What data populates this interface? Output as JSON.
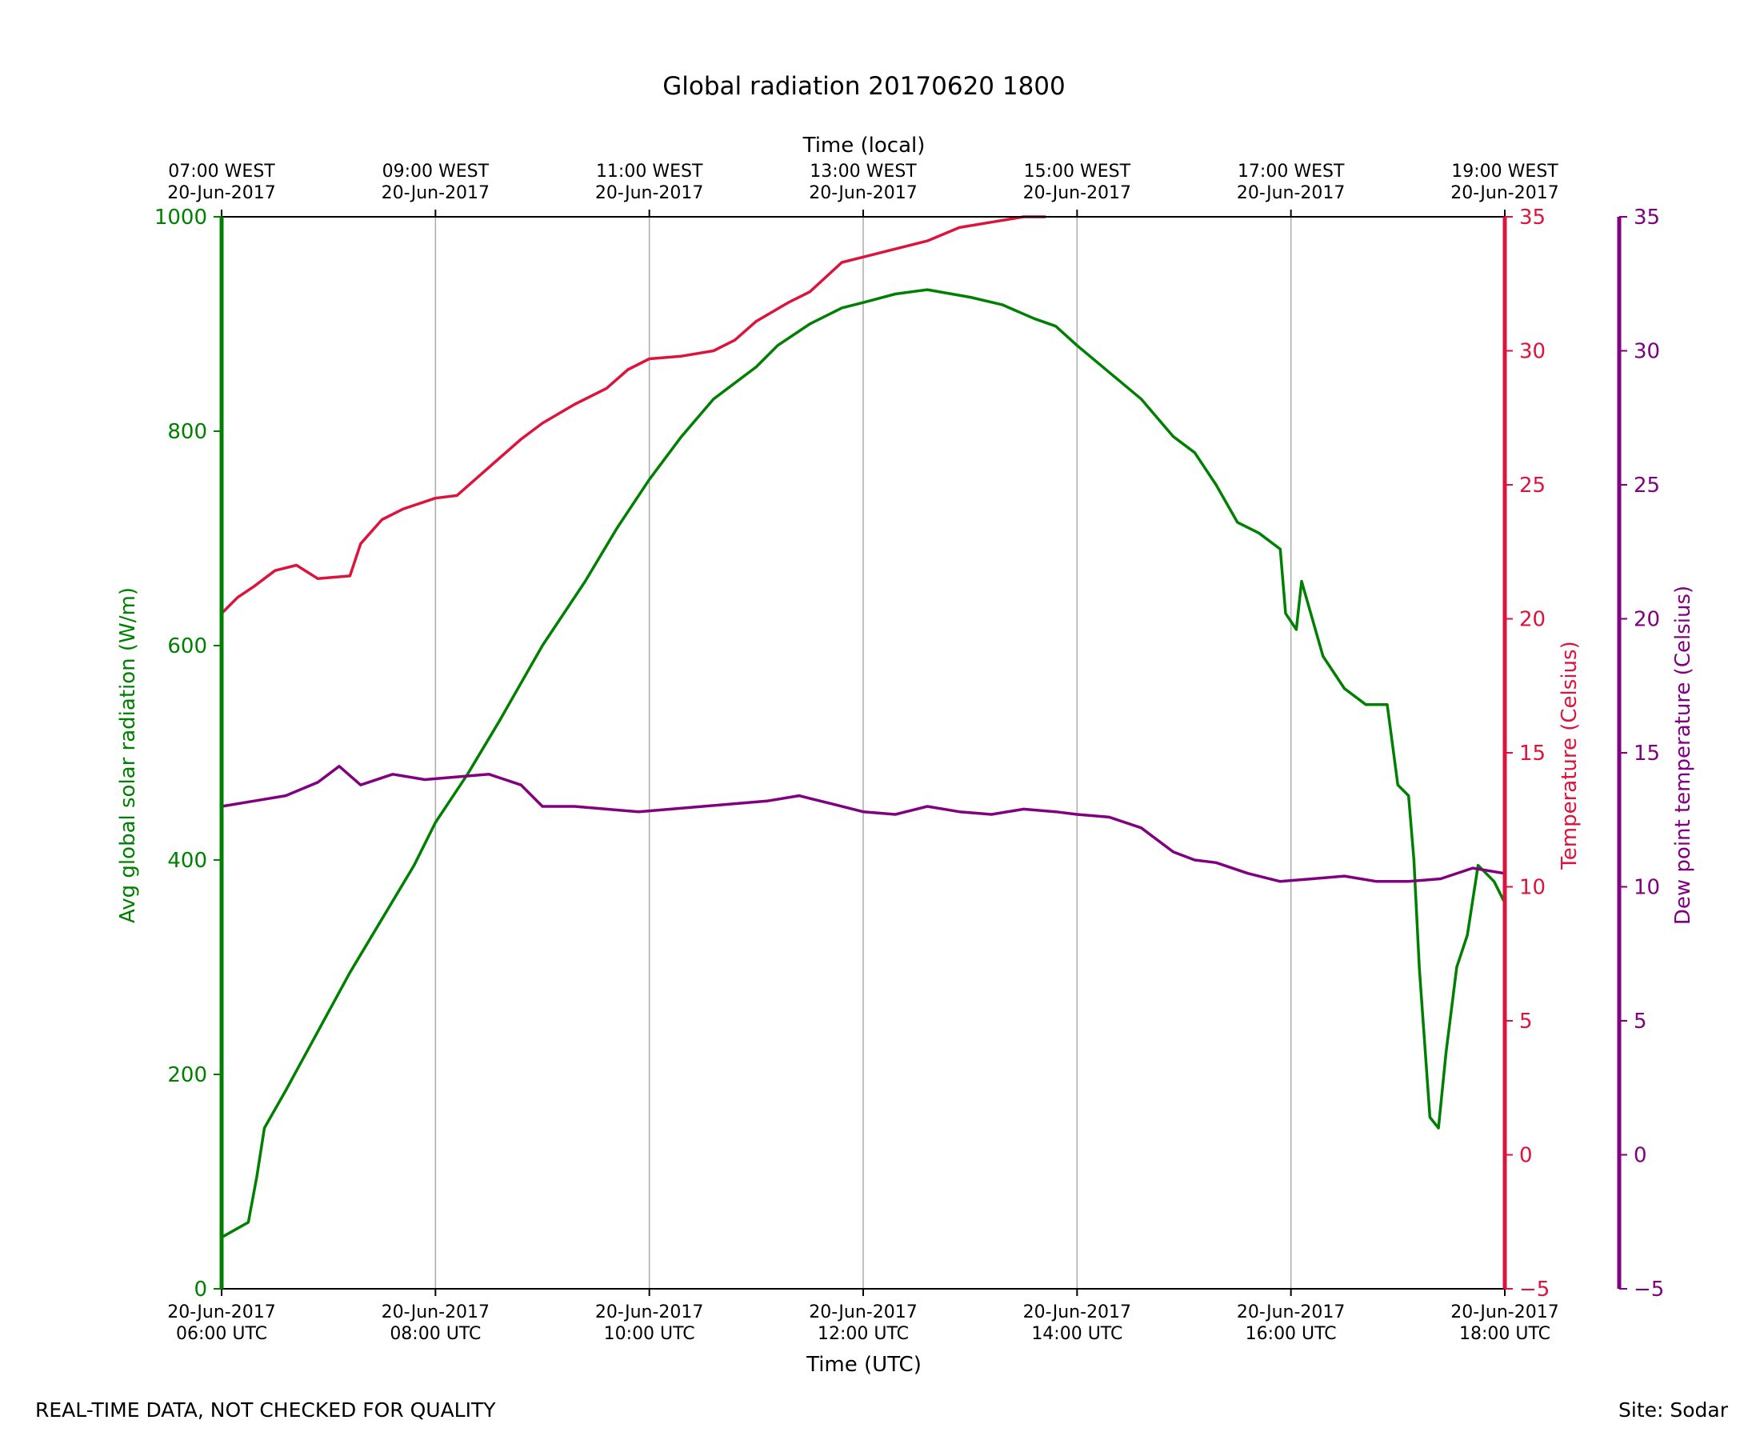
{
  "footer": {
    "disclaimer": "REAL-TIME DATA, NOT CHECKED FOR QUALITY",
    "site": "Site: Sodar"
  },
  "chart_data": {
    "type": "line",
    "title": "Global radiation 20170620 1800",
    "xlabel": "Time (UTC)",
    "xlabel_top": "Time (local)",
    "xlim": [
      0,
      12
    ],
    "x_unit": "hours since 20-Jun-2017 06:00 UTC",
    "x_ticks_bottom": [
      {
        "x": 0,
        "line1": "20-Jun-2017",
        "line2": "06:00 UTC"
      },
      {
        "x": 2,
        "line1": "20-Jun-2017",
        "line2": "08:00 UTC"
      },
      {
        "x": 4,
        "line1": "20-Jun-2017",
        "line2": "10:00 UTC"
      },
      {
        "x": 6,
        "line1": "20-Jun-2017",
        "line2": "12:00 UTC"
      },
      {
        "x": 8,
        "line1": "20-Jun-2017",
        "line2": "14:00 UTC"
      },
      {
        "x": 10,
        "line1": "20-Jun-2017",
        "line2": "16:00 UTC"
      },
      {
        "x": 12,
        "line1": "20-Jun-2017",
        "line2": "18:00 UTC"
      }
    ],
    "x_ticks_top": [
      {
        "x": 0,
        "line1": "07:00 WEST",
        "line2": "20-Jun-2017"
      },
      {
        "x": 2,
        "line1": "09:00 WEST",
        "line2": "20-Jun-2017"
      },
      {
        "x": 4,
        "line1": "11:00 WEST",
        "line2": "20-Jun-2017"
      },
      {
        "x": 6,
        "line1": "13:00 WEST",
        "line2": "20-Jun-2017"
      },
      {
        "x": 8,
        "line1": "15:00 WEST",
        "line2": "20-Jun-2017"
      },
      {
        "x": 10,
        "line1": "17:00 WEST",
        "line2": "20-Jun-2017"
      },
      {
        "x": 12,
        "line1": "19:00 WEST",
        "line2": "20-Jun-2017"
      }
    ],
    "grid": true,
    "axes": {
      "radiation": {
        "label": "Avg global solar radiation (W/m)",
        "ylim": [
          0,
          1000
        ],
        "ticks": [
          0,
          200,
          400,
          600,
          800,
          1000
        ],
        "color": "#008000"
      },
      "temperature": {
        "label": "Temperature (Celsius)",
        "ylim": [
          -5,
          35
        ],
        "ticks": [
          -5,
          0,
          5,
          10,
          15,
          20,
          25,
          30,
          35
        ],
        "color": "#dc143c"
      },
      "dewpoint": {
        "label": "Dew point temperature (Celsius)",
        "ylim": [
          -5,
          35
        ],
        "ticks": [
          -5,
          0,
          5,
          10,
          15,
          20,
          25,
          30,
          35
        ],
        "color": "#800080"
      }
    },
    "series": [
      {
        "name": "Avg global solar radiation",
        "axis": "radiation",
        "color": "#008000",
        "points": [
          [
            0,
            48
          ],
          [
            0.25,
            62
          ],
          [
            0.33,
            105
          ],
          [
            0.4,
            150
          ],
          [
            0.6,
            185
          ],
          [
            0.9,
            240
          ],
          [
            1.2,
            295
          ],
          [
            1.5,
            345
          ],
          [
            1.8,
            395
          ],
          [
            2.0,
            435
          ],
          [
            2.3,
            480
          ],
          [
            2.6,
            530
          ],
          [
            3.0,
            600
          ],
          [
            3.4,
            660
          ],
          [
            3.7,
            710
          ],
          [
            4.0,
            755
          ],
          [
            4.3,
            795
          ],
          [
            4.6,
            830
          ],
          [
            5.0,
            860
          ],
          [
            5.2,
            880
          ],
          [
            5.5,
            900
          ],
          [
            5.8,
            915
          ],
          [
            6.0,
            920
          ],
          [
            6.3,
            928
          ],
          [
            6.6,
            932
          ],
          [
            7.0,
            925
          ],
          [
            7.3,
            918
          ],
          [
            7.6,
            905
          ],
          [
            7.8,
            898
          ],
          [
            8.0,
            880
          ],
          [
            8.3,
            855
          ],
          [
            8.6,
            830
          ],
          [
            8.9,
            795
          ],
          [
            9.1,
            780
          ],
          [
            9.3,
            750
          ],
          [
            9.5,
            715
          ],
          [
            9.7,
            705
          ],
          [
            9.9,
            690
          ],
          [
            9.95,
            630
          ],
          [
            10.05,
            615
          ],
          [
            10.1,
            660
          ],
          [
            10.3,
            590
          ],
          [
            10.5,
            560
          ],
          [
            10.7,
            545
          ],
          [
            10.9,
            545
          ],
          [
            11.0,
            470
          ],
          [
            11.1,
            460
          ],
          [
            11.15,
            400
          ],
          [
            11.2,
            300
          ],
          [
            11.3,
            160
          ],
          [
            11.38,
            150
          ],
          [
            11.45,
            220
          ],
          [
            11.55,
            300
          ],
          [
            11.65,
            330
          ],
          [
            11.75,
            395
          ],
          [
            11.9,
            380
          ],
          [
            12.0,
            360
          ]
        ]
      },
      {
        "name": "Temperature",
        "axis": "temperature",
        "color": "#dc143c",
        "points": [
          [
            0,
            20.2
          ],
          [
            0.15,
            20.8
          ],
          [
            0.3,
            21.2
          ],
          [
            0.5,
            21.8
          ],
          [
            0.7,
            22.0
          ],
          [
            0.9,
            21.5
          ],
          [
            1.2,
            21.6
          ],
          [
            1.3,
            22.8
          ],
          [
            1.5,
            23.7
          ],
          [
            1.7,
            24.1
          ],
          [
            2.0,
            24.5
          ],
          [
            2.2,
            24.6
          ],
          [
            2.4,
            25.3
          ],
          [
            2.6,
            26.0
          ],
          [
            2.8,
            26.7
          ],
          [
            3.0,
            27.3
          ],
          [
            3.3,
            28.0
          ],
          [
            3.6,
            28.6
          ],
          [
            3.8,
            29.3
          ],
          [
            4.0,
            29.7
          ],
          [
            4.3,
            29.8
          ],
          [
            4.6,
            30.0
          ],
          [
            4.8,
            30.4
          ],
          [
            5.0,
            31.1
          ],
          [
            5.3,
            31.8
          ],
          [
            5.5,
            32.2
          ],
          [
            5.8,
            33.3
          ],
          [
            6.0,
            33.5
          ],
          [
            6.3,
            33.8
          ],
          [
            6.6,
            34.1
          ],
          [
            6.9,
            34.6
          ],
          [
            7.2,
            34.8
          ],
          [
            7.5,
            35.0
          ],
          [
            7.7,
            35.0
          ]
        ]
      },
      {
        "name": "Dew point temperature",
        "axis": "dewpoint",
        "color": "#800080",
        "points": [
          [
            0,
            13.0
          ],
          [
            0.3,
            13.2
          ],
          [
            0.6,
            13.4
          ],
          [
            0.9,
            13.9
          ],
          [
            1.1,
            14.5
          ],
          [
            1.3,
            13.8
          ],
          [
            1.6,
            14.2
          ],
          [
            1.9,
            14.0
          ],
          [
            2.2,
            14.1
          ],
          [
            2.5,
            14.2
          ],
          [
            2.8,
            13.8
          ],
          [
            3.0,
            13.0
          ],
          [
            3.3,
            13.0
          ],
          [
            3.6,
            12.9
          ],
          [
            3.9,
            12.8
          ],
          [
            4.2,
            12.9
          ],
          [
            4.5,
            13.0
          ],
          [
            4.8,
            13.1
          ],
          [
            5.1,
            13.2
          ],
          [
            5.4,
            13.4
          ],
          [
            5.7,
            13.1
          ],
          [
            6.0,
            12.8
          ],
          [
            6.3,
            12.7
          ],
          [
            6.6,
            13.0
          ],
          [
            6.9,
            12.8
          ],
          [
            7.2,
            12.7
          ],
          [
            7.5,
            12.9
          ],
          [
            7.8,
            12.8
          ],
          [
            8.0,
            12.7
          ],
          [
            8.3,
            12.6
          ],
          [
            8.6,
            12.2
          ],
          [
            8.9,
            11.3
          ],
          [
            9.1,
            11.0
          ],
          [
            9.3,
            10.9
          ],
          [
            9.6,
            10.5
          ],
          [
            9.9,
            10.2
          ],
          [
            10.2,
            10.3
          ],
          [
            10.5,
            10.4
          ],
          [
            10.8,
            10.2
          ],
          [
            11.1,
            10.2
          ],
          [
            11.4,
            10.3
          ],
          [
            11.7,
            10.7
          ],
          [
            12.0,
            10.5
          ]
        ]
      }
    ]
  }
}
